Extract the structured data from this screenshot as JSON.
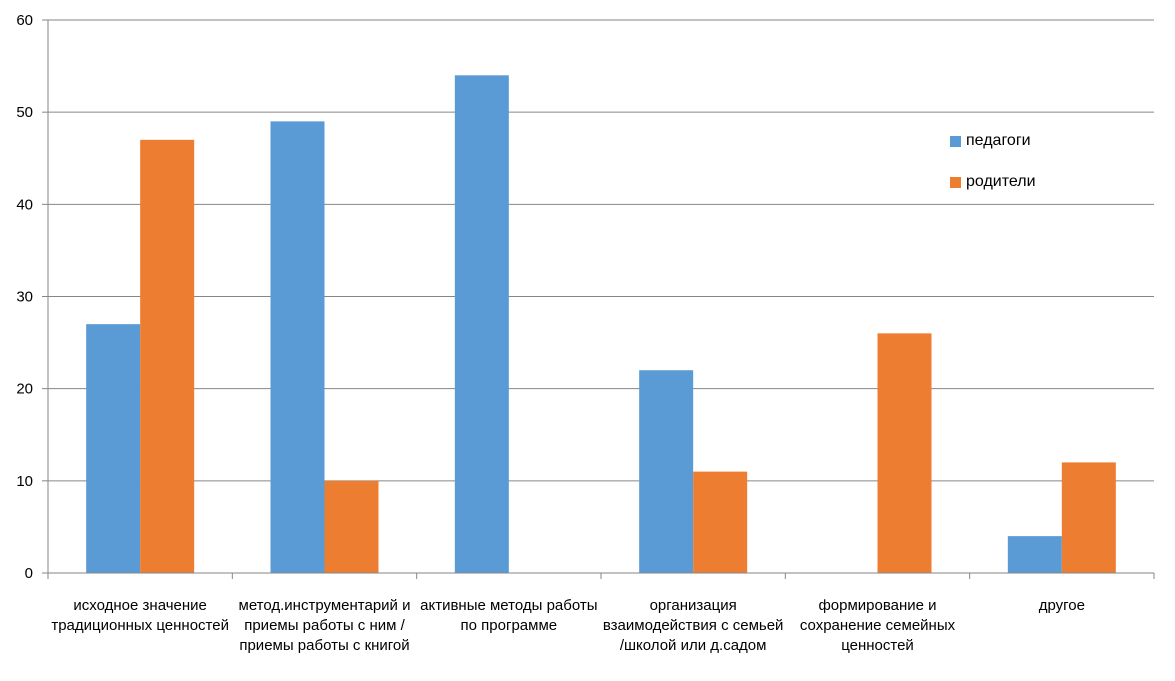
{
  "chart_data": {
    "type": "bar",
    "categories": [
      "исходное значение традиционных ценностей",
      "метод.инструментарий и приемы работы с ним / приемы работы с книгой",
      "активные методы работы по программе",
      "организация взаимодействия с семьей /школой или д.садом",
      "формирование и сохранение семейных ценностей",
      "другое"
    ],
    "series": [
      {
        "name": "педагоги",
        "color": "#5b9bd5",
        "values": [
          27,
          49,
          54,
          22,
          0,
          4
        ]
      },
      {
        "name": "родители",
        "color": "#ed7d31",
        "values": [
          47,
          10,
          0,
          11,
          26,
          12
        ]
      }
    ],
    "ylim": [
      0,
      60
    ],
    "yticks": [
      0,
      10,
      20,
      30,
      40,
      50,
      60
    ],
    "grid": true,
    "legend_position": "right"
  }
}
